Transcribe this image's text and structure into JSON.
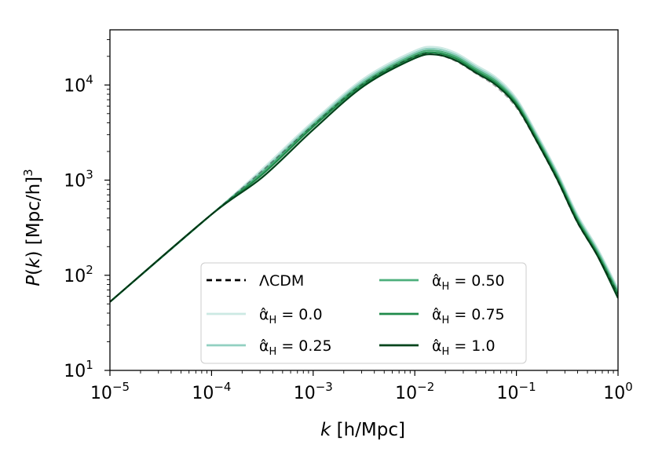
{
  "chart_data": {
    "type": "line",
    "title": "",
    "xscale": "log",
    "yscale": "log",
    "xlim": [
      1e-05,
      1
    ],
    "ylim": [
      10,
      38000
    ],
    "xlabel": {
      "italic": "k",
      "rest": " [h/Mpc]"
    },
    "ylabel": {
      "italic": "P",
      "mid": "(",
      "italic2": "k",
      "rest": ")  [Mpc/h]",
      "sup": "3"
    },
    "xticks": [
      {
        "value": 1e-05,
        "base": "10",
        "exp": "−5"
      },
      {
        "value": 0.0001,
        "base": "10",
        "exp": "−4"
      },
      {
        "value": 0.001,
        "base": "10",
        "exp": "−3"
      },
      {
        "value": 0.01,
        "base": "10",
        "exp": "−2"
      },
      {
        "value": 0.1,
        "base": "10",
        "exp": "−1"
      },
      {
        "value": 1,
        "base": "10",
        "exp": "0"
      }
    ],
    "yticks": [
      {
        "value": 10,
        "base": "10",
        "exp": "1"
      },
      {
        "value": 100,
        "base": "10",
        "exp": "2"
      },
      {
        "value": 1000,
        "base": "10",
        "exp": "3"
      },
      {
        "value": 10000,
        "base": "10",
        "exp": "4"
      }
    ],
    "legend_position": "lower-center",
    "series": [
      {
        "name": "ΛCDM",
        "label_prefix": "ΛCDM",
        "label_sub": "",
        "label_value": "",
        "color": "#000000",
        "dashed": true,
        "alpha_h": null
      },
      {
        "name": "α̂H = 0.0",
        "label_prefix": "α̂",
        "label_sub": "H",
        "label_value": " = 0.0",
        "color": "#cce9e3",
        "dashed": false,
        "alpha_h": 0.0
      },
      {
        "name": "α̂H = 0.25",
        "label_prefix": "α̂",
        "label_sub": "H",
        "label_value": " = 0.25",
        "color": "#92d0c1",
        "dashed": false,
        "alpha_h": 0.25
      },
      {
        "name": "α̂H = 0.50",
        "label_prefix": "α̂",
        "label_sub": "H",
        "label_value": " = 0.50",
        "color": "#4daf7c",
        "dashed": false,
        "alpha_h": 0.5
      },
      {
        "name": "α̂H = 0.75",
        "label_prefix": "α̂",
        "label_sub": "H",
        "label_value": " = 0.75",
        "color": "#1f8a4a",
        "dashed": false,
        "alpha_h": 0.75
      },
      {
        "name": "α̂H = 1.0",
        "label_prefix": "α̂",
        "label_sub": "H",
        "label_value": " = 1.0",
        "color": "#00441b",
        "dashed": false,
        "alpha_h": 1.0
      }
    ],
    "curves": {
      "log10_k": [
        -5.0,
        -4.0,
        -3.5,
        -3.0,
        -2.5,
        -2.0,
        -1.8,
        -1.6,
        -1.4,
        -1.2,
        -1.0,
        -0.8,
        -0.6,
        -0.4,
        -0.2,
        0.0
      ],
      "lcdm_log10_pk": [
        1.72,
        2.64,
        3.1,
        3.58,
        4.02,
        4.3,
        4.32,
        4.25,
        4.12,
        3.98,
        3.76,
        3.4,
        3.0,
        2.55,
        2.2,
        1.8
      ],
      "log10_pk": {
        "0.0": [
          1.72,
          2.64,
          3.12,
          3.62,
          4.07,
          4.36,
          4.4,
          4.34,
          4.21,
          4.08,
          3.86,
          3.49,
          3.09,
          2.64,
          2.28,
          1.86
        ],
        "0.25": [
          1.72,
          2.64,
          3.1,
          3.6,
          4.05,
          4.34,
          4.38,
          4.32,
          4.19,
          4.06,
          3.84,
          3.47,
          3.07,
          2.62,
          2.26,
          1.84
        ],
        "0.50": [
          1.72,
          2.64,
          3.08,
          3.58,
          4.03,
          4.32,
          4.36,
          4.3,
          4.17,
          4.04,
          3.82,
          3.45,
          3.05,
          2.6,
          2.24,
          1.82
        ],
        "0.75": [
          1.72,
          2.64,
          3.06,
          3.56,
          4.01,
          4.3,
          4.34,
          4.28,
          4.15,
          4.02,
          3.8,
          3.43,
          3.03,
          2.58,
          2.22,
          1.8
        ],
        "1.0": [
          1.72,
          2.64,
          3.03,
          3.53,
          3.99,
          4.28,
          4.32,
          4.26,
          4.13,
          4.0,
          3.78,
          3.41,
          3.01,
          2.56,
          2.2,
          1.76
        ]
      }
    }
  }
}
